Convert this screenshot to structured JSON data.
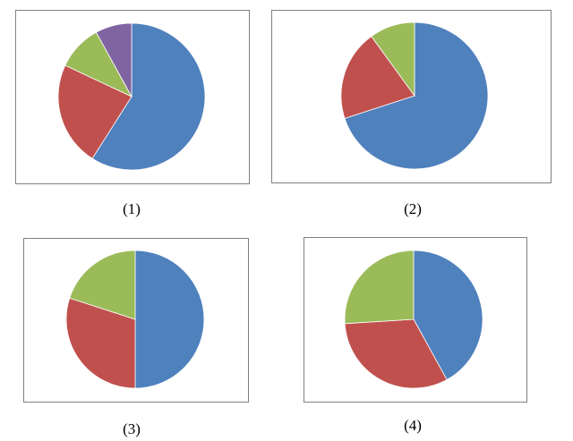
{
  "chart_data": [
    {
      "type": "pie",
      "title": "(1)",
      "values": [
        59,
        23,
        10,
        8
      ],
      "colors": [
        "#4f81bd",
        "#c0504d",
        "#9bbb59",
        "#8064a2"
      ]
    },
    {
      "type": "pie",
      "title": "(2)",
      "values": [
        70,
        20,
        10
      ],
      "colors": [
        "#4f81bd",
        "#c0504d",
        "#9bbb59"
      ]
    },
    {
      "type": "pie",
      "title": "(3)",
      "values": [
        50,
        30,
        20
      ],
      "colors": [
        "#4f81bd",
        "#c0504d",
        "#9bbb59"
      ]
    },
    {
      "type": "pie",
      "title": "(4)",
      "values": [
        42,
        32,
        26
      ],
      "colors": [
        "#4f81bd",
        "#c0504d",
        "#9bbb59"
      ]
    }
  ]
}
